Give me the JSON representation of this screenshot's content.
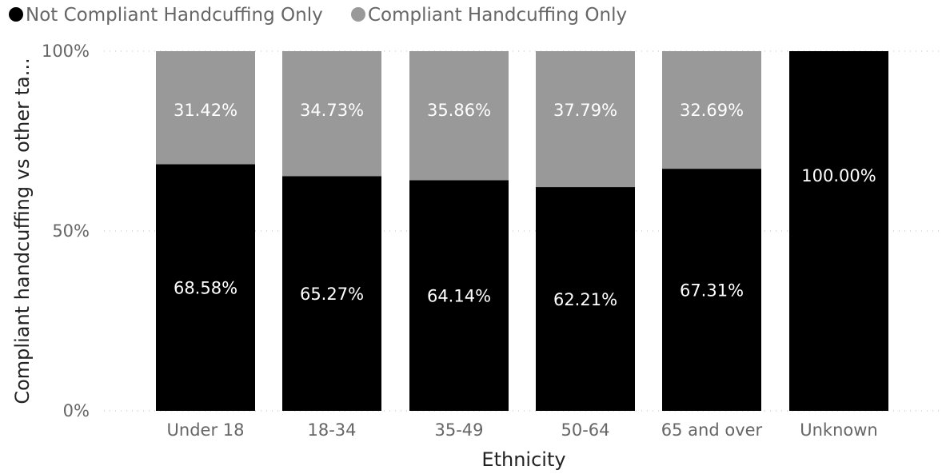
{
  "chart_data": {
    "type": "bar",
    "stacked": "100%",
    "categories": [
      "Under 18",
      "18-34",
      "35-49",
      "50-64",
      "65 and over",
      "Unknown"
    ],
    "series": [
      {
        "name": "Not Compliant Handcuffing Only",
        "color": "#000000",
        "values": [
          68.58,
          65.27,
          64.14,
          62.21,
          67.31,
          100.0
        ],
        "labels": [
          "68.58%",
          "65.27%",
          "64.14%",
          "62.21%",
          "67.31%",
          "100.00%"
        ]
      },
      {
        "name": "Compliant Handcuffing Only",
        "color": "#999999",
        "values": [
          31.42,
          34.73,
          35.86,
          37.79,
          32.69,
          0
        ],
        "labels": [
          "31.42%",
          "34.73%",
          "35.86%",
          "37.79%",
          "32.69%",
          ""
        ]
      }
    ],
    "xlabel": "Ethnicity",
    "ylabel": "Compliant handcuffing vs other ta...",
    "ylim": [
      0,
      100
    ],
    "y_ticks": [
      {
        "value": 0,
        "label": "0%"
      },
      {
        "value": 50,
        "label": "50%"
      },
      {
        "value": 100,
        "label": "100%"
      }
    ],
    "gridlines": "dotted",
    "legend_position": "top-left"
  }
}
